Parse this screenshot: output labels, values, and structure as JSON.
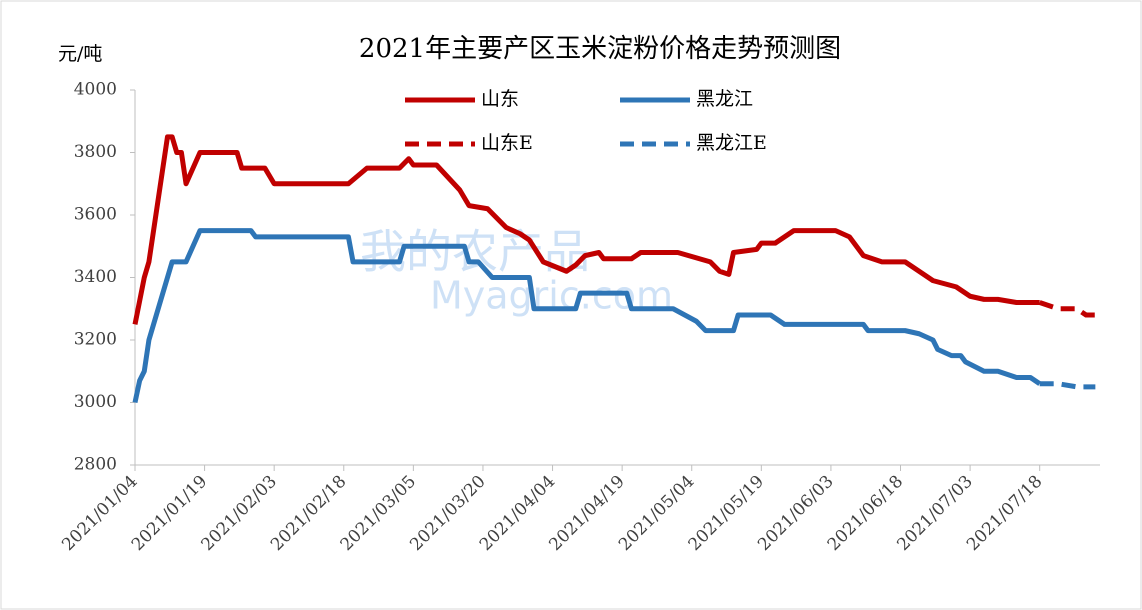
{
  "chart_data": {
    "type": "line",
    "title": "2021年主要产区玉米淀粉价格走势预测图",
    "ylabel": "元/吨",
    "watermark": [
      "我的农产品",
      "Myagric.com"
    ],
    "xlim": [
      "2021/01/04",
      "2021/07/31"
    ],
    "xticks": [
      "2021/01/04",
      "2021/01/19",
      "2021/02/03",
      "2021/02/18",
      "2021/03/05",
      "2021/03/20",
      "2021/04/04",
      "2021/04/19",
      "2021/05/04",
      "2021/05/19",
      "2021/06/03",
      "2021/06/18",
      "2021/07/03",
      "2021/07/18"
    ],
    "ylim": [
      2800,
      4000
    ],
    "yticks": [
      2800,
      3000,
      3200,
      3400,
      3600,
      3800,
      4000
    ],
    "series": [
      {
        "name": "山东",
        "color": "#c00000",
        "dashed": false,
        "x": [
          "2021/01/04",
          "2021/01/06",
          "2021/01/07",
          "2021/01/09",
          "2021/01/11",
          "2021/01/12",
          "2021/01/13",
          "2021/01/14",
          "2021/01/15",
          "2021/01/18",
          "2021/01/26",
          "2021/01/27",
          "2021/02/01",
          "2021/02/03",
          "2021/02/19",
          "2021/02/23",
          "2021/03/02",
          "2021/03/04",
          "2021/03/05",
          "2021/03/10",
          "2021/03/15",
          "2021/03/17",
          "2021/03/21",
          "2021/03/25",
          "2021/03/28",
          "2021/03/30",
          "2021/04/02",
          "2021/04/07",
          "2021/04/09",
          "2021/04/11",
          "2021/04/14",
          "2021/04/15",
          "2021/04/21",
          "2021/04/23",
          "2021/05/01",
          "2021/05/08",
          "2021/05/10",
          "2021/05/12",
          "2021/05/13",
          "2021/05/18",
          "2021/05/19",
          "2021/05/22",
          "2021/05/26",
          "2021/06/04",
          "2021/06/07",
          "2021/06/10",
          "2021/06/14",
          "2021/06/19",
          "2021/06/25",
          "2021/06/30",
          "2021/07/03",
          "2021/07/06",
          "2021/07/09",
          "2021/07/13",
          "2021/07/18"
        ],
        "values": [
          3250,
          3400,
          3450,
          3650,
          3850,
          3850,
          3800,
          3800,
          3700,
          3800,
          3800,
          3750,
          3750,
          3700,
          3700,
          3750,
          3750,
          3780,
          3760,
          3760,
          3680,
          3630,
          3620,
          3560,
          3540,
          3520,
          3450,
          3420,
          3440,
          3470,
          3480,
          3460,
          3460,
          3480,
          3480,
          3450,
          3420,
          3410,
          3480,
          3490,
          3510,
          3510,
          3550,
          3550,
          3530,
          3470,
          3450,
          3450,
          3390,
          3370,
          3340,
          3330,
          3330,
          3320,
          3320
        ]
      },
      {
        "name": "黑龙江",
        "color": "#2e75b6",
        "dashed": false,
        "x": [
          "2021/01/04",
          "2021/01/05",
          "2021/01/06",
          "2021/01/07",
          "2021/01/08",
          "2021/01/12",
          "2021/01/15",
          "2021/01/18",
          "2021/01/29",
          "2021/01/30",
          "2021/02/19",
          "2021/02/20",
          "2021/03/02",
          "2021/03/03",
          "2021/03/16",
          "2021/03/17",
          "2021/03/19",
          "2021/03/22",
          "2021/03/30",
          "2021/03/31",
          "2021/04/09",
          "2021/04/10",
          "2021/04/20",
          "2021/04/21",
          "2021/04/30",
          "2021/05/05",
          "2021/05/07",
          "2021/05/13",
          "2021/05/14",
          "2021/05/21",
          "2021/05/24",
          "2021/06/10",
          "2021/06/11",
          "2021/06/19",
          "2021/06/22",
          "2021/06/25",
          "2021/06/26",
          "2021/06/29",
          "2021/07/01",
          "2021/07/02",
          "2021/07/06",
          "2021/07/09",
          "2021/07/13",
          "2021/07/16",
          "2021/07/18"
        ],
        "values": [
          3000,
          3070,
          3100,
          3200,
          3250,
          3450,
          3450,
          3550,
          3550,
          3530,
          3530,
          3450,
          3450,
          3500,
          3500,
          3450,
          3450,
          3400,
          3400,
          3300,
          3300,
          3350,
          3350,
          3300,
          3300,
          3260,
          3230,
          3230,
          3280,
          3280,
          3250,
          3250,
          3230,
          3230,
          3220,
          3200,
          3170,
          3150,
          3150,
          3130,
          3100,
          3100,
          3080,
          3080,
          3060
        ]
      },
      {
        "name": "山东E",
        "color": "#c00000",
        "dashed": true,
        "x": [
          "2021/07/18",
          "2021/07/22",
          "2021/07/26",
          "2021/07/28",
          "2021/07/30"
        ],
        "values": [
          3320,
          3300,
          3300,
          3280,
          3280
        ]
      },
      {
        "name": "黑龙江E",
        "color": "#2e75b6",
        "dashed": true,
        "x": [
          "2021/07/18",
          "2021/07/22",
          "2021/07/26",
          "2021/07/30"
        ],
        "values": [
          3060,
          3060,
          3050,
          3050
        ]
      }
    ]
  }
}
